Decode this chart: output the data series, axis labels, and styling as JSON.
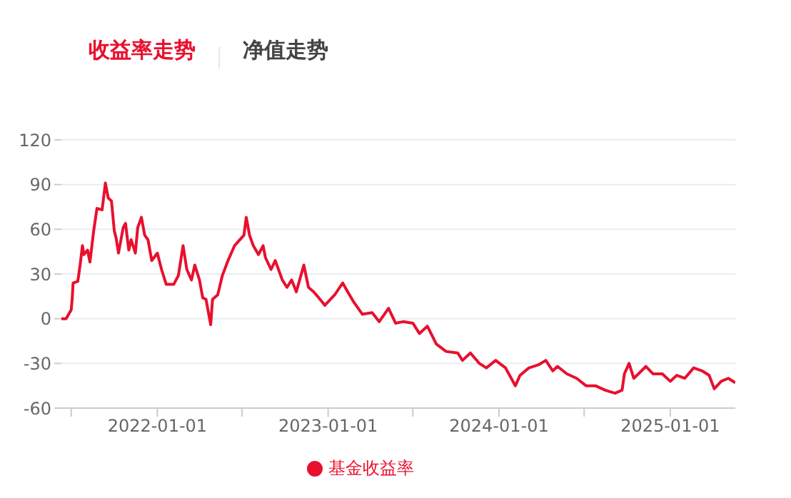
{
  "chart_data": {
    "type": "line",
    "title": "收益率走势",
    "subtitle": "净值走势",
    "x": [
      "2021-06-10",
      "2021-06-20",
      "2021-07-01",
      "2021-07-03",
      "2021-07-05",
      "2021-07-15",
      "2021-07-20",
      "2021-07-25",
      "2021-07-28",
      "2021-08-05",
      "2021-08-10",
      "2021-08-18",
      "2021-08-25",
      "2021-09-05",
      "2021-09-12",
      "2021-09-18",
      "2021-09-25",
      "2021-10-01",
      "2021-10-05",
      "2021-10-10",
      "2021-10-20",
      "2021-10-25",
      "2021-11-01",
      "2021-11-06",
      "2021-11-15",
      "2021-11-20",
      "2021-11-28",
      "2021-12-05",
      "2021-12-12",
      "2021-12-20",
      "2022-01-01",
      "2022-01-10",
      "2022-01-20",
      "2022-02-05",
      "2022-02-15",
      "2022-02-25",
      "2022-03-05",
      "2022-03-15",
      "2022-03-22",
      "2022-04-01",
      "2022-04-08",
      "2022-04-15",
      "2022-04-25",
      "2022-04-29",
      "2022-05-10",
      "2022-05-20",
      "2022-06-01",
      "2022-06-15",
      "2022-07-05",
      "2022-07-10",
      "2022-07-17",
      "2022-07-25",
      "2022-08-05",
      "2022-08-15",
      "2022-08-20",
      "2022-09-01",
      "2022-09-10",
      "2022-09-25",
      "2022-10-05",
      "2022-10-15",
      "2022-10-25",
      "2022-11-10",
      "2022-11-20",
      "2022-12-01",
      "2022-12-12",
      "2022-12-25",
      "2023-01-15",
      "2023-02-01",
      "2023-02-10",
      "2023-02-25",
      "2023-03-15",
      "2023-04-05",
      "2023-04-20",
      "2023-05-10",
      "2023-05-25",
      "2023-06-10",
      "2023-07-01",
      "2023-07-15",
      "2023-08-01",
      "2023-08-20",
      "2023-09-10",
      "2023-10-05",
      "2023-10-15",
      "2023-11-01",
      "2023-11-20",
      "2023-12-05",
      "2023-12-25",
      "2024-01-15",
      "2024-02-05",
      "2024-02-15",
      "2024-03-05",
      "2024-03-25",
      "2024-04-10",
      "2024-04-25",
      "2024-05-05",
      "2024-05-25",
      "2024-06-15",
      "2024-07-05",
      "2024-07-25",
      "2024-08-15",
      "2024-09-05",
      "2024-09-20",
      "2024-09-25",
      "2024-10-05",
      "2024-10-15",
      "2024-10-25",
      "2024-11-10",
      "2024-11-25",
      "2024-12-15",
      "2025-01-01",
      "2025-01-15",
      "2025-02-01",
      "2025-02-20",
      "2025-03-10",
      "2025-03-25",
      "2025-04-05",
      "2025-04-20",
      "2025-05-05",
      "2025-05-20"
    ],
    "series": [
      {
        "name": "基金收益率",
        "color": "#e8102e",
        "values": [
          0,
          0,
          6,
          13,
          24,
          25,
          36,
          49,
          43,
          46,
          38,
          59,
          74,
          73,
          91,
          81,
          79,
          59,
          54,
          44,
          61,
          64,
          46,
          53,
          44,
          61,
          68,
          56,
          53,
          39,
          44,
          33,
          23,
          23,
          29,
          49,
          33,
          26,
          36,
          26,
          14,
          13,
          -4,
          13,
          16,
          29,
          39,
          49,
          56,
          68,
          56,
          49,
          43,
          49,
          41,
          33,
          39,
          26,
          21,
          26,
          18,
          36,
          21,
          18,
          14,
          9,
          16,
          24,
          19,
          11,
          3,
          4,
          -2,
          7,
          -3,
          -2,
          -3,
          -10,
          -5,
          -17,
          -22,
          -23,
          -28,
          -23,
          -30,
          -33,
          -28,
          -33,
          -45,
          -38,
          -33,
          -31,
          -28,
          -35,
          -32,
          -37,
          -40,
          -45,
          -45,
          -48,
          -50,
          -48,
          -37,
          -30,
          -40,
          -37,
          -32,
          -37,
          -37,
          -42,
          -38,
          -40,
          -33,
          -35,
          -38,
          -47,
          -42,
          -40,
          -43
        ]
      }
    ],
    "xlim": [
      "2021-06-10",
      "2025-05-20"
    ],
    "xticks": [
      {
        "value": "2021-07-01",
        "label": null
      },
      "2022-01-01",
      {
        "value": "2022-07-01",
        "label": null
      },
      "2023-01-01",
      {
        "value": "2023-07-01",
        "label": null
      },
      "2024-01-01",
      {
        "value": "2024-07-01",
        "label": null
      },
      "2025-01-01"
    ],
    "ylim": [
      -60,
      120
    ],
    "yticks": [
      -60,
      -30,
      0,
      30,
      60,
      90,
      120
    ],
    "grid": "y",
    "legend": "bottom",
    "marker": "none",
    "line_style": "solid"
  }
}
